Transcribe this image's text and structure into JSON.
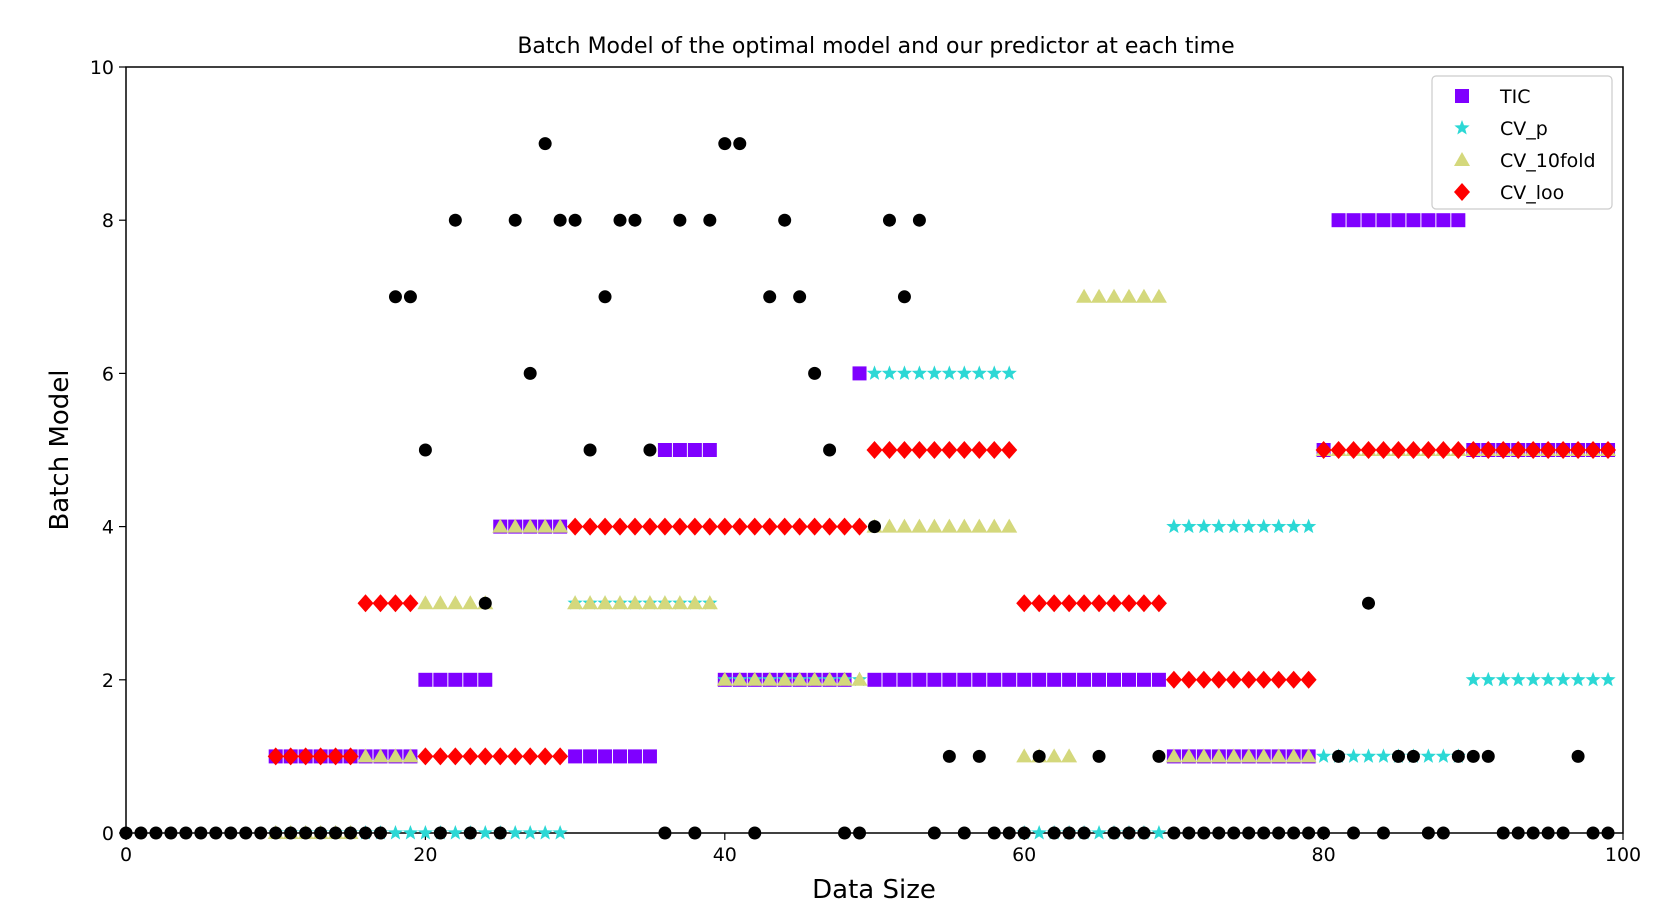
{
  "chart_data": {
    "type": "scatter",
    "title": "Batch Model of the optimal model and our predictor at each time",
    "xlabel": "Data Size",
    "ylabel": "Batch Model",
    "xlim": [
      0,
      100
    ],
    "ylim": [
      0,
      10
    ],
    "x_ticks": [
      0,
      20,
      40,
      60,
      80,
      100
    ],
    "y_ticks": [
      0,
      2,
      4,
      6,
      8,
      10
    ],
    "x_tick_labels": [
      "0",
      "20",
      "40",
      "60",
      "80",
      "100"
    ],
    "y_tick_labels": [
      "0",
      "2",
      "4",
      "6",
      "8",
      "10"
    ],
    "grid": false,
    "legend_position": "top-right",
    "series": [
      {
        "name": "TIC",
        "marker": "square",
        "color": "#7f00ff",
        "x": [
          10,
          11,
          12,
          13,
          14,
          15,
          16,
          17,
          18,
          19,
          20,
          21,
          22,
          23,
          24,
          25,
          26,
          27,
          28,
          29,
          30,
          31,
          32,
          33,
          34,
          35,
          36,
          37,
          38,
          39,
          40,
          41,
          42,
          43,
          44,
          45,
          46,
          47,
          48,
          49,
          50,
          51,
          52,
          53,
          54,
          55,
          56,
          57,
          58,
          59,
          60,
          61,
          62,
          63,
          64,
          65,
          66,
          67,
          68,
          69,
          70,
          71,
          72,
          73,
          74,
          75,
          76,
          77,
          78,
          79,
          80,
          81,
          82,
          83,
          84,
          85,
          86,
          87,
          88,
          89,
          90,
          91,
          92,
          93,
          94,
          95,
          96,
          97,
          98,
          99
        ],
        "y": [
          1,
          1,
          1,
          1,
          1,
          1,
          1,
          1,
          1,
          1,
          2,
          2,
          2,
          2,
          2,
          4,
          4,
          4,
          4,
          4,
          1,
          1,
          1,
          1,
          1,
          1,
          5,
          5,
          5,
          5,
          2,
          2,
          2,
          2,
          2,
          2,
          2,
          2,
          2,
          6,
          2,
          2,
          2,
          2,
          2,
          2,
          2,
          2,
          2,
          2,
          2,
          2,
          2,
          2,
          2,
          2,
          2,
          2,
          2,
          2,
          1,
          1,
          1,
          1,
          1,
          1,
          1,
          1,
          1,
          1,
          5,
          8,
          8,
          8,
          8,
          8,
          8,
          8,
          8,
          8,
          5,
          5,
          5,
          5,
          5,
          5,
          5,
          5,
          5,
          5
        ]
      },
      {
        "name": "CV_p",
        "marker": "star",
        "color": "#2cd8d5",
        "x": [
          10,
          11,
          12,
          13,
          14,
          15,
          16,
          17,
          18,
          19,
          20,
          21,
          22,
          23,
          24,
          25,
          26,
          27,
          28,
          29,
          30,
          31,
          32,
          33,
          34,
          35,
          36,
          37,
          38,
          39,
          40,
          41,
          42,
          43,
          44,
          45,
          46,
          47,
          48,
          49,
          50,
          51,
          52,
          53,
          54,
          55,
          56,
          57,
          58,
          59,
          60,
          61,
          62,
          63,
          64,
          65,
          66,
          67,
          68,
          69,
          70,
          71,
          72,
          73,
          74,
          75,
          76,
          77,
          78,
          79,
          80,
          81,
          82,
          83,
          84,
          85,
          86,
          87,
          88,
          89,
          90,
          91,
          92,
          93,
          94,
          95,
          96,
          97,
          98,
          99
        ],
        "y": [
          0,
          0,
          0,
          0,
          0,
          0,
          0,
          0,
          0,
          0,
          0,
          0,
          0,
          0,
          0,
          0,
          0,
          0,
          0,
          0,
          3,
          3,
          3,
          3,
          3,
          3,
          3,
          3,
          3,
          3,
          2,
          2,
          2,
          2,
          2,
          2,
          2,
          2,
          2,
          2,
          6,
          6,
          6,
          6,
          6,
          6,
          6,
          6,
          6,
          6,
          0,
          0,
          0,
          0,
          0,
          0,
          0,
          0,
          0,
          0,
          4,
          4,
          4,
          4,
          4,
          4,
          4,
          4,
          4,
          4,
          1,
          1,
          1,
          1,
          1,
          1,
          1,
          1,
          1,
          1,
          2,
          2,
          2,
          2,
          2,
          2,
          2,
          2,
          2,
          2
        ]
      },
      {
        "name": "CV_10fold",
        "marker": "triangle",
        "color": "#d4d87c",
        "x": [
          10,
          11,
          12,
          13,
          14,
          15,
          16,
          17,
          18,
          19,
          20,
          21,
          22,
          23,
          24,
          25,
          26,
          27,
          28,
          29,
          30,
          31,
          32,
          33,
          34,
          35,
          36,
          37,
          38,
          39,
          40,
          41,
          42,
          43,
          44,
          45,
          46,
          47,
          48,
          49,
          50,
          51,
          52,
          53,
          54,
          55,
          56,
          57,
          58,
          59,
          60,
          61,
          62,
          63,
          64,
          65,
          66,
          67,
          68,
          69,
          70,
          71,
          72,
          73,
          74,
          75,
          76,
          77,
          78,
          79,
          80,
          81,
          82,
          83,
          84,
          85,
          86,
          87,
          88,
          89,
          90,
          91,
          92,
          93,
          94,
          95,
          96,
          97,
          98,
          99
        ],
        "y": [
          0,
          0,
          0,
          0,
          0,
          0,
          1,
          1,
          1,
          1,
          3,
          3,
          3,
          3,
          3,
          4,
          4,
          4,
          4,
          4,
          3,
          3,
          3,
          3,
          3,
          3,
          3,
          3,
          3,
          3,
          2,
          2,
          2,
          2,
          2,
          2,
          2,
          2,
          2,
          2,
          4,
          4,
          4,
          4,
          4,
          4,
          4,
          4,
          4,
          4,
          1,
          1,
          1,
          1,
          7,
          7,
          7,
          7,
          7,
          7,
          1,
          1,
          1,
          1,
          1,
          1,
          1,
          1,
          1,
          1,
          5,
          5,
          5,
          5,
          5,
          5,
          5,
          5,
          5,
          5,
          5,
          5,
          5,
          5,
          5,
          5,
          5,
          5,
          5,
          5
        ]
      },
      {
        "name": "CV_loo",
        "marker": "diamond",
        "color": "#ff0000",
        "x": [
          10,
          11,
          12,
          13,
          14,
          15,
          16,
          17,
          18,
          19,
          20,
          21,
          22,
          23,
          24,
          25,
          26,
          27,
          28,
          29,
          30,
          31,
          32,
          33,
          34,
          35,
          36,
          37,
          38,
          39,
          40,
          41,
          42,
          43,
          44,
          45,
          46,
          47,
          48,
          49,
          50,
          51,
          52,
          53,
          54,
          55,
          56,
          57,
          58,
          59,
          60,
          61,
          62,
          63,
          64,
          65,
          66,
          67,
          68,
          69,
          70,
          71,
          72,
          73,
          74,
          75,
          76,
          77,
          78,
          79,
          80,
          81,
          82,
          83,
          84,
          85,
          86,
          87,
          88,
          89,
          90,
          91,
          92,
          93,
          94,
          95,
          96,
          97,
          98,
          99
        ],
        "y": [
          1,
          1,
          1,
          1,
          1,
          1,
          3,
          3,
          3,
          3,
          1,
          1,
          1,
          1,
          1,
          1,
          1,
          1,
          1,
          1,
          4,
          4,
          4,
          4,
          4,
          4,
          4,
          4,
          4,
          4,
          4,
          4,
          4,
          4,
          4,
          4,
          4,
          4,
          4,
          4,
          5,
          5,
          5,
          5,
          5,
          5,
          5,
          5,
          5,
          5,
          3,
          3,
          3,
          3,
          3,
          3,
          3,
          3,
          3,
          3,
          2,
          2,
          2,
          2,
          2,
          2,
          2,
          2,
          2,
          2,
          5,
          5,
          5,
          5,
          5,
          5,
          5,
          5,
          5,
          5,
          5,
          5,
          5,
          5,
          5,
          5,
          5,
          5,
          5,
          5
        ]
      },
      {
        "marker": "circle",
        "color": "#000000",
        "x": [
          0,
          1,
          2,
          3,
          4,
          5,
          6,
          7,
          8,
          9,
          10,
          11,
          12,
          13,
          14,
          15,
          16,
          17,
          18,
          19,
          20,
          21,
          22,
          23,
          24,
          25,
          26,
          27,
          28,
          29,
          30,
          31,
          32,
          33,
          34,
          35,
          36,
          37,
          38,
          39,
          40,
          41,
          42,
          43,
          44,
          45,
          46,
          47,
          48,
          49,
          50,
          51,
          52,
          53,
          54,
          55,
          56,
          57,
          58,
          59,
          60,
          61,
          62,
          63,
          64,
          65,
          66,
          67,
          68,
          69,
          70,
          71,
          72,
          73,
          74,
          75,
          76,
          77,
          78,
          79,
          80,
          81,
          82,
          83,
          84,
          85,
          86,
          87,
          88,
          89,
          90,
          91,
          92,
          93,
          94,
          95,
          96,
          97,
          98,
          99
        ],
        "y": [
          0,
          0,
          0,
          0,
          0,
          0,
          0,
          0,
          0,
          0,
          0,
          0,
          0,
          0,
          0,
          0,
          0,
          0,
          7,
          7,
          5,
          0,
          8,
          0,
          3,
          0,
          8,
          6,
          9,
          8,
          8,
          5,
          7,
          8,
          8,
          5,
          0,
          8,
          0,
          8,
          9,
          9,
          0,
          7,
          8,
          7,
          6,
          5,
          0,
          0,
          4,
          8,
          7,
          8,
          0,
          1,
          0,
          1,
          0,
          0,
          0,
          1,
          0,
          0,
          0,
          1,
          0,
          0,
          0,
          1,
          0,
          0,
          0,
          0,
          0,
          0,
          0,
          0,
          0,
          0,
          0,
          1,
          0,
          3,
          0,
          1,
          1,
          0,
          0,
          1,
          1,
          1,
          0,
          0,
          0,
          0,
          0,
          1,
          0,
          0
        ]
      }
    ]
  }
}
